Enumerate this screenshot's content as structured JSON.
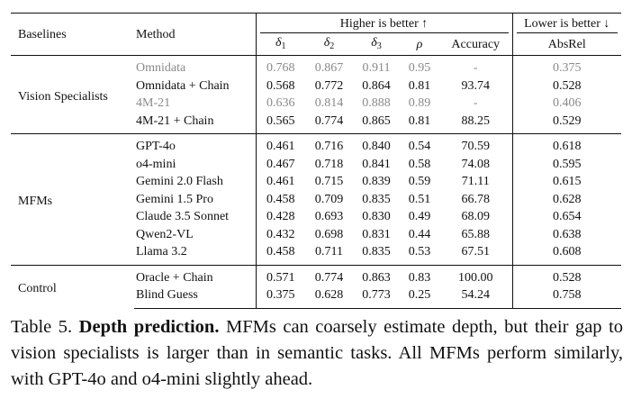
{
  "table": {
    "header": {
      "baselines": "Baselines",
      "method": "Method",
      "higher": "Higher is better ↑",
      "lower": "Lower is better ↓",
      "cols": [
        "δ1",
        "δ2",
        "δ3",
        "ρ",
        "Accuracy",
        "AbsRel"
      ]
    },
    "groups": [
      {
        "name": "Vision Specialists",
        "rows": [
          {
            "method": "Omnidata",
            "gray": true,
            "values": [
              "0.768",
              "0.867",
              "0.911",
              "0.95",
              "-",
              "0.375"
            ]
          },
          {
            "method": "Omnidata + Chain",
            "gray": false,
            "values": [
              "0.568",
              "0.772",
              "0.864",
              "0.81",
              "93.74",
              "0.528"
            ]
          },
          {
            "method": "4M-21",
            "gray": true,
            "values": [
              "0.636",
              "0.814",
              "0.888",
              "0.89",
              "-",
              "0.406"
            ]
          },
          {
            "method": "4M-21 + Chain",
            "gray": false,
            "values": [
              "0.565",
              "0.774",
              "0.865",
              "0.81",
              "88.25",
              "0.529"
            ]
          }
        ]
      },
      {
        "name": "MFMs",
        "rows": [
          {
            "method": "GPT-4o",
            "gray": false,
            "values": [
              "0.461",
              "0.716",
              "0.840",
              "0.54",
              "70.59",
              "0.618"
            ]
          },
          {
            "method": "o4-mini",
            "gray": false,
            "values": [
              "0.467",
              "0.718",
              "0.841",
              "0.58",
              "74.08",
              "0.595"
            ]
          },
          {
            "method": "Gemini 2.0 Flash",
            "gray": false,
            "values": [
              "0.461",
              "0.715",
              "0.839",
              "0.59",
              "71.11",
              "0.615"
            ]
          },
          {
            "method": "Gemini 1.5 Pro",
            "gray": false,
            "values": [
              "0.458",
              "0.709",
              "0.835",
              "0.51",
              "66.78",
              "0.628"
            ]
          },
          {
            "method": "Claude 3.5 Sonnet",
            "gray": false,
            "values": [
              "0.428",
              "0.693",
              "0.830",
              "0.49",
              "68.09",
              "0.654"
            ]
          },
          {
            "method": "Qwen2-VL",
            "gray": false,
            "values": [
              "0.432",
              "0.698",
              "0.831",
              "0.44",
              "65.88",
              "0.638"
            ]
          },
          {
            "method": "Llama 3.2",
            "gray": false,
            "values": [
              "0.458",
              "0.711",
              "0.835",
              "0.53",
              "67.51",
              "0.608"
            ]
          }
        ]
      },
      {
        "name": "Control",
        "rows": [
          {
            "method": "Oracle + Chain",
            "gray": false,
            "values": [
              "0.571",
              "0.774",
              "0.863",
              "0.83",
              "100.00",
              "0.528"
            ]
          },
          {
            "method": "Blind Guess",
            "gray": false,
            "values": [
              "0.375",
              "0.628",
              "0.773",
              "0.25",
              "54.24",
              "0.758"
            ]
          }
        ]
      }
    ]
  },
  "caption": {
    "label": "Table 5.",
    "title": "Depth prediction.",
    "text": "MFMs can coarsely estimate depth, but their gap to vision specialists is larger than in semantic tasks. All MFMs perform similarly, with GPT-4o and o4-mini slightly ahead."
  },
  "colors": {
    "text": "#111111",
    "gray_row": "#8a8a8a",
    "background": "#ffffff"
  }
}
